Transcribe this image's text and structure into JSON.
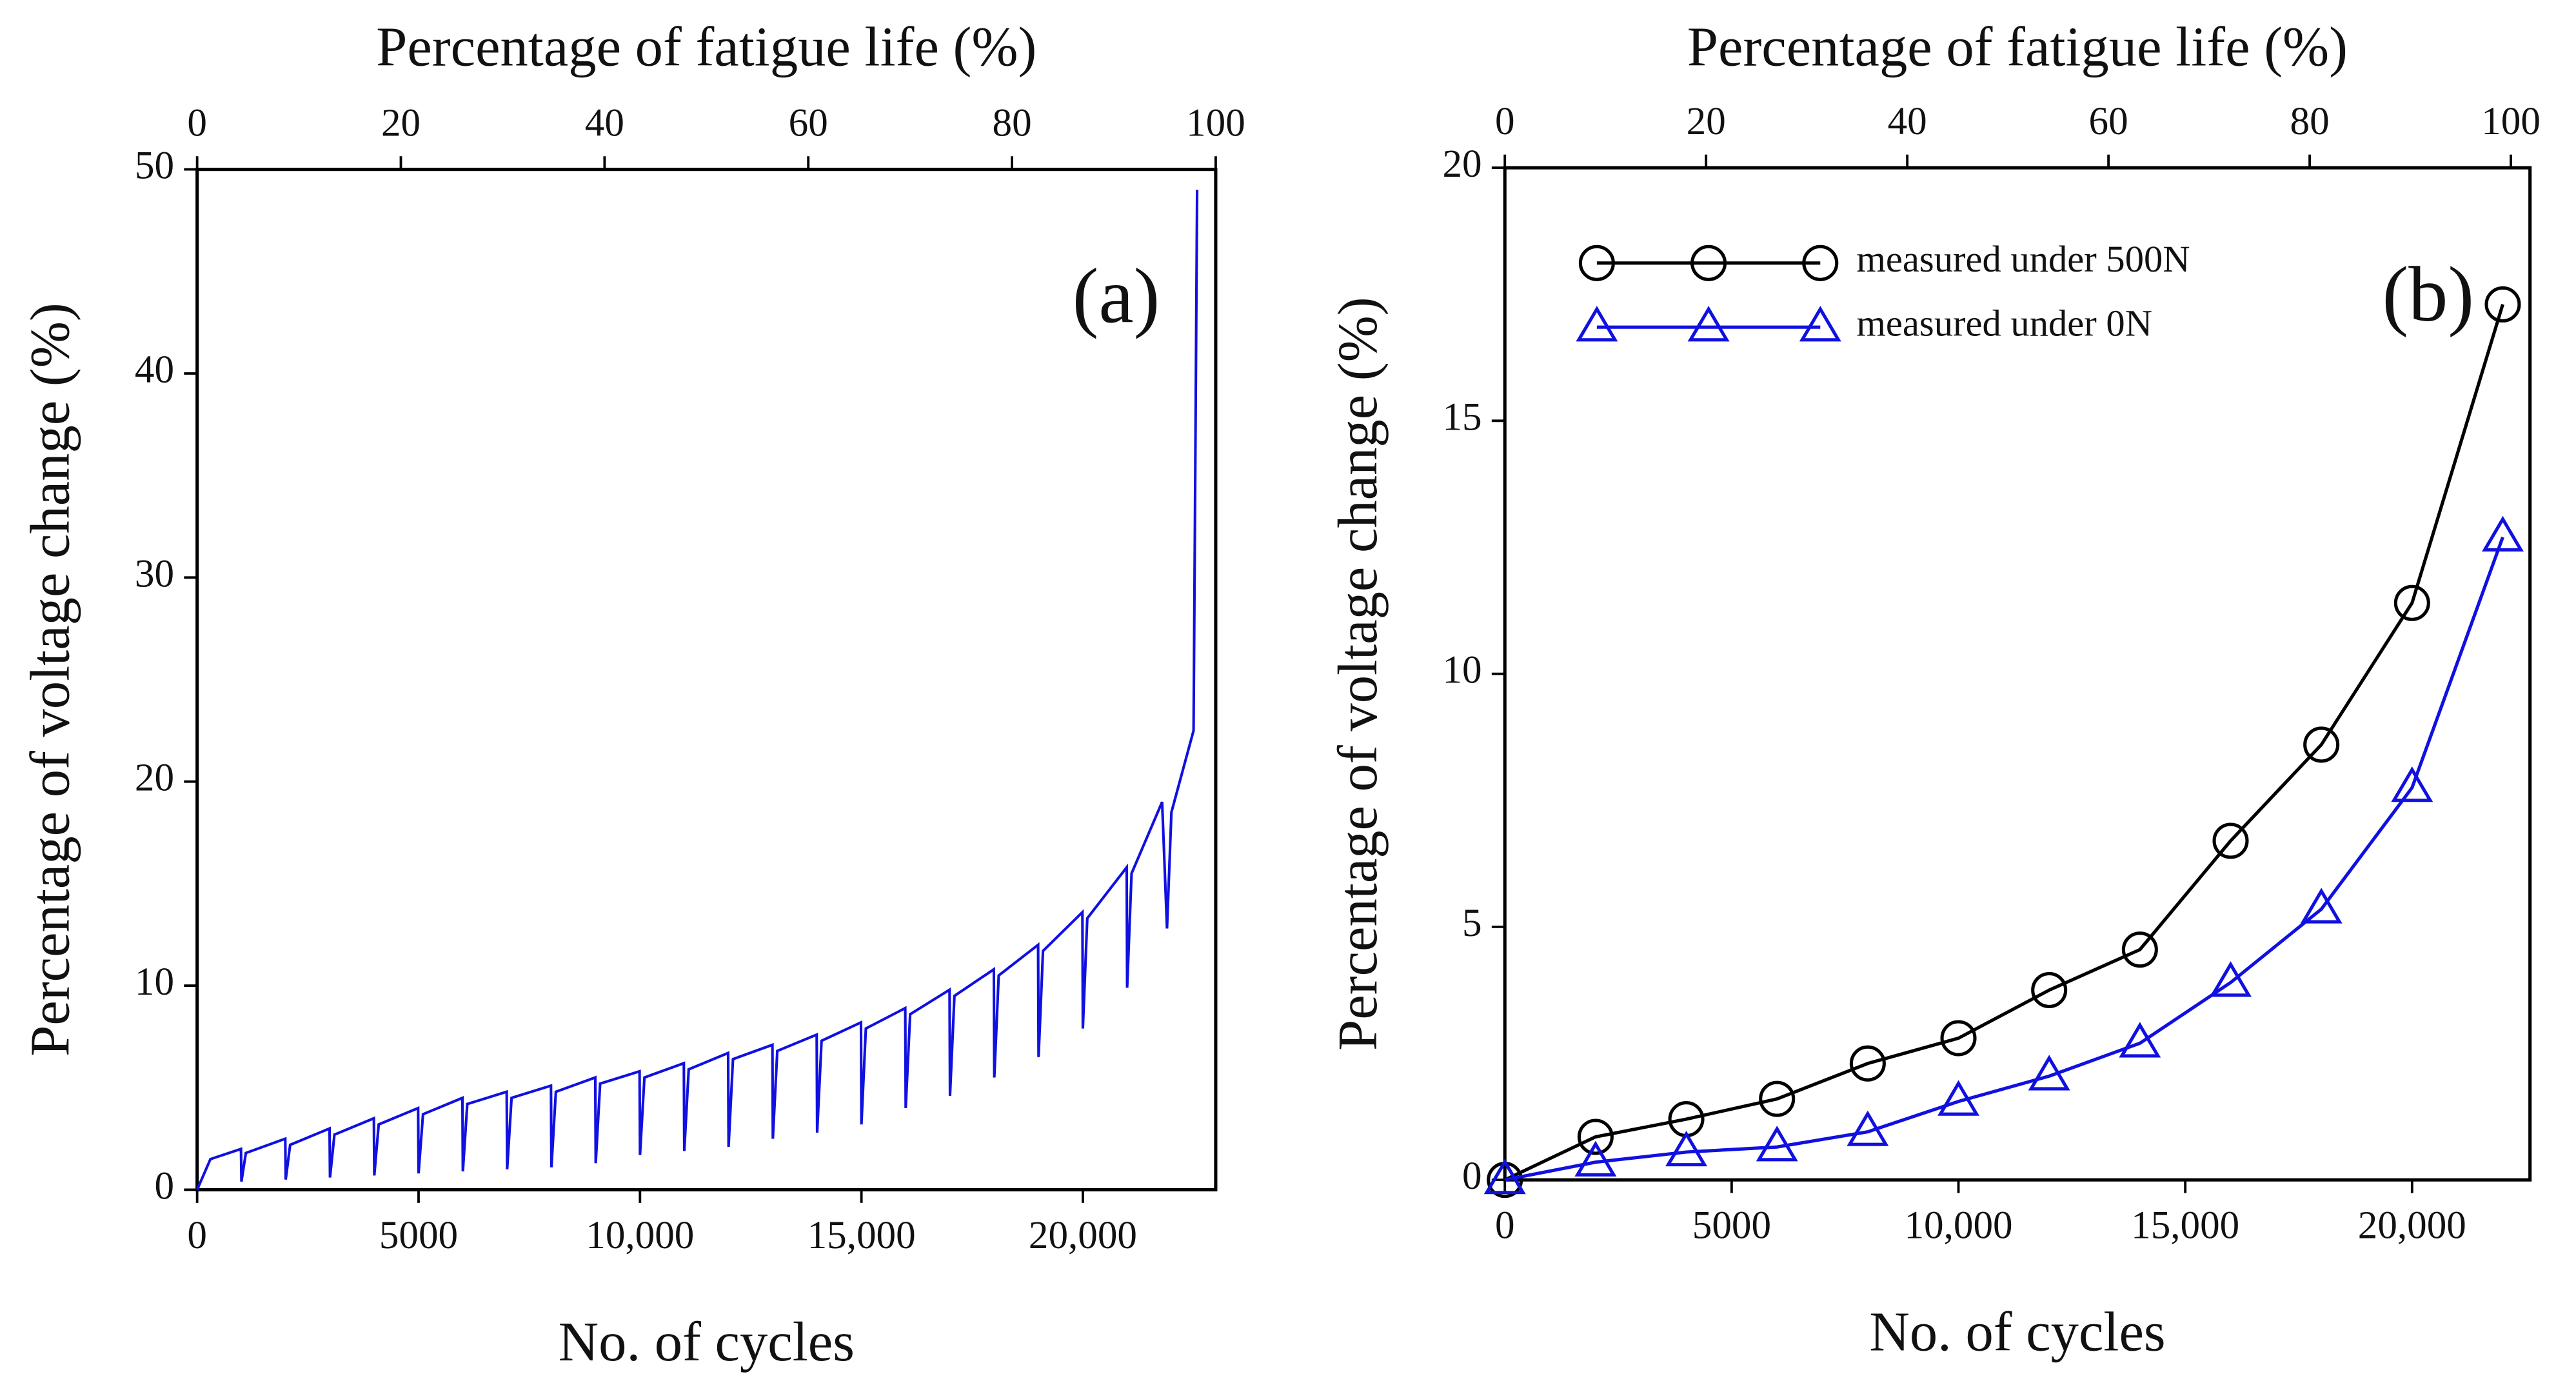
{
  "chart_data": [
    {
      "type": "line",
      "annotation": "(a)",
      "xlabel": "No. of cycles",
      "ylabel": "Percentage of voltage change (%)",
      "x2label": "Percentage of fatigue life (%)",
      "xlim": [
        0,
        23000
      ],
      "xticks": [
        0,
        5000,
        {
          "value": 10000,
          "label": "10,000"
        },
        {
          "value": 15000,
          "label": "15,000"
        },
        {
          "value": 20000,
          "label": "20,000"
        }
      ],
      "x2lim": [
        0,
        100
      ],
      "x2ticks": [
        0,
        20,
        40,
        60,
        80,
        100
      ],
      "ylim": [
        0,
        50
      ],
      "yticks": [
        0,
        10,
        20,
        30,
        40,
        50
      ],
      "x": [
        0,
        300,
        990,
        1000,
        1100,
        1990,
        2000,
        2100,
        2990,
        3000,
        3100,
        3990,
        4000,
        4100,
        4990,
        5000,
        5100,
        5990,
        6000,
        6100,
        6990,
        7000,
        7100,
        7990,
        8000,
        8100,
        8990,
        9000,
        9100,
        9990,
        10000,
        10100,
        10990,
        11000,
        11100,
        11990,
        12000,
        12100,
        12990,
        13000,
        13100,
        13990,
        14000,
        14100,
        14990,
        15000,
        15100,
        15990,
        16000,
        16100,
        16990,
        17000,
        17100,
        17990,
        18000,
        18100,
        18990,
        19000,
        19100,
        19990,
        20000,
        20100,
        20990,
        21000,
        21100,
        21790,
        21900,
        22000,
        22500,
        22580
      ],
      "series": [
        {
          "color": "#1010e0",
          "values": [
            0,
            1.5,
            2.0,
            0.4,
            1.8,
            2.5,
            0.5,
            2.2,
            3.0,
            0.6,
            2.7,
            3.5,
            0.7,
            3.2,
            4.0,
            0.8,
            3.7,
            4.5,
            0.9,
            4.2,
            4.8,
            1.0,
            4.5,
            5.1,
            1.1,
            4.8,
            5.5,
            1.3,
            5.2,
            5.8,
            1.7,
            5.5,
            6.2,
            1.9,
            5.9,
            6.7,
            2.1,
            6.4,
            7.1,
            2.5,
            6.8,
            7.6,
            2.8,
            7.3,
            8.2,
            3.2,
            7.9,
            8.9,
            4.0,
            8.6,
            9.8,
            4.6,
            9.5,
            10.8,
            5.5,
            10.5,
            12.0,
            6.5,
            11.7,
            13.6,
            7.9,
            13.3,
            15.8,
            9.9,
            15.5,
            19.0,
            12.8,
            18.5,
            22.5,
            49.0
          ]
        }
      ]
    },
    {
      "type": "line",
      "annotation": "(b)",
      "legend": "upper left",
      "xlabel": "No. of cycles",
      "ylabel": "Percentage of voltage change (%)",
      "x2label": "Percentage of fatigue life (%)",
      "xlim": [
        0,
        22600
      ],
      "xticks": [
        0,
        5000,
        {
          "value": 10000,
          "label": "10,000"
        },
        {
          "value": 15000,
          "label": "15,000"
        },
        {
          "value": 20000,
          "label": "20,000"
        }
      ],
      "x2lim": [
        0,
        101.9
      ],
      "x2ticks": [
        0,
        20,
        40,
        60,
        80,
        100
      ],
      "ylim": [
        0,
        20
      ],
      "yticks": [
        0,
        5,
        10,
        15,
        20
      ],
      "x": [
        0,
        2000,
        4000,
        6000,
        8000,
        10000,
        12000,
        14000,
        16000,
        18000,
        20000,
        22000
      ],
      "series": [
        {
          "name": "measured under 500N",
          "color": "#000000",
          "marker": "circle",
          "values": [
            0,
            0.85,
            1.2,
            1.6,
            2.3,
            2.8,
            3.75,
            4.55,
            6.7,
            8.6,
            11.4,
            17.3
          ]
        },
        {
          "name": "measured under 0N",
          "color": "#1010e0",
          "marker": "triangle",
          "values": [
            0,
            0.35,
            0.55,
            0.65,
            0.95,
            1.55,
            2.05,
            2.7,
            3.9,
            5.35,
            7.75,
            12.7
          ]
        }
      ]
    }
  ]
}
